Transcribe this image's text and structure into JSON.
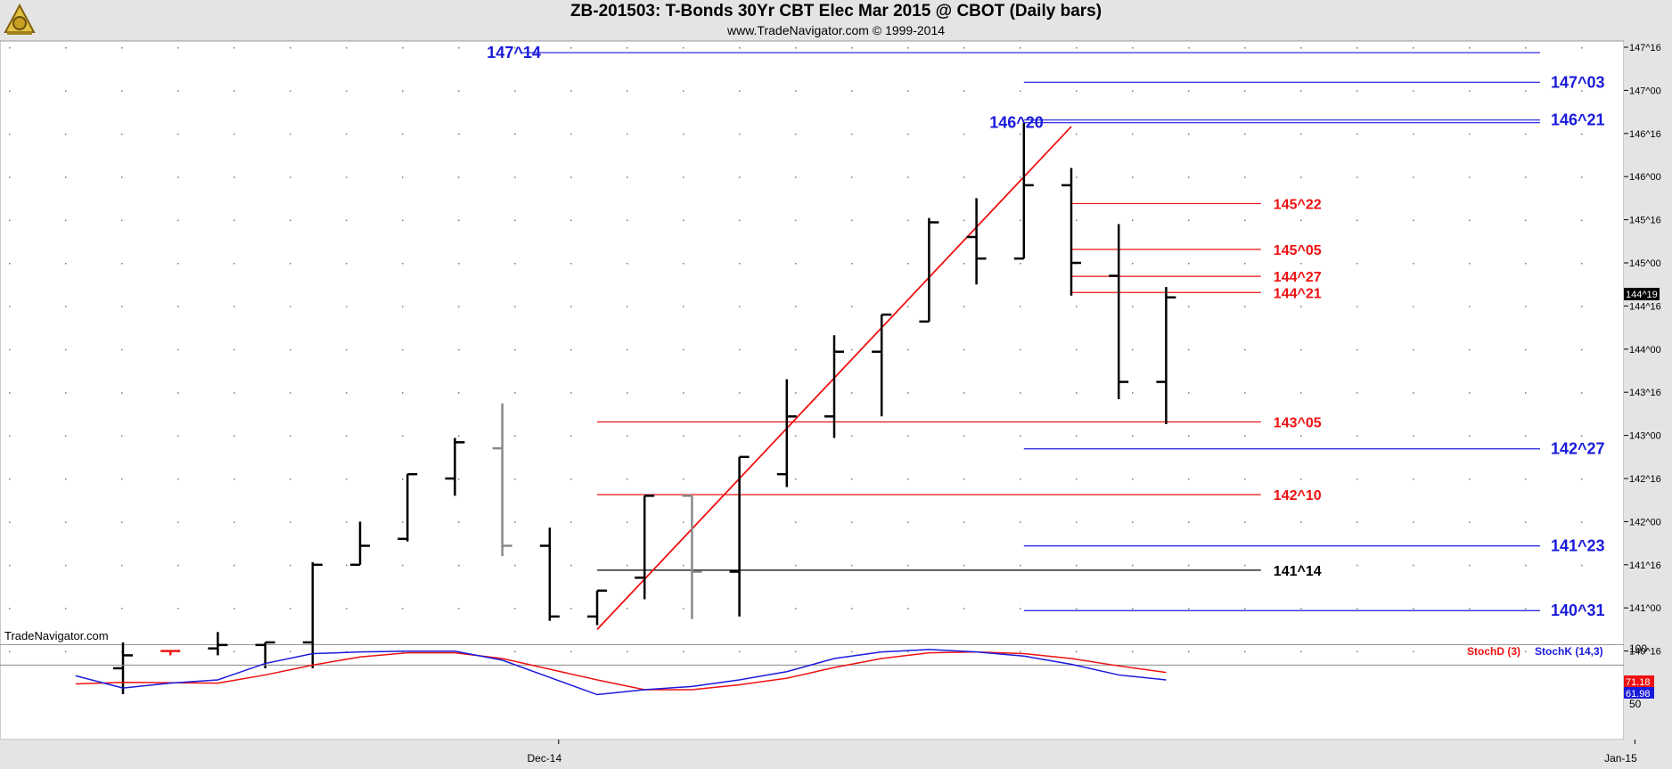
{
  "header": {
    "title": "ZB-201503:  T-Bonds 30Yr CBT Elec Mar 2015 @ CBOT  (Daily bars)",
    "subtitle": "www.TradeNavigator.com © 1999-2014",
    "logo_icon": "sextant-logo-icon"
  },
  "watermark": "TradeNavigator.com",
  "colors": {
    "background": "#ffffff",
    "frame": "#e4e4e4",
    "bar": "#000000",
    "highlight_bar": "#888888",
    "blue_level": "#1a1adb",
    "red_level": "#ee1111",
    "trendline": "#ee1111",
    "black_level": "#000000",
    "stochD": "#ee1111",
    "stochK": "#1a1adb"
  },
  "chart_data": [
    {
      "type": "ohlc",
      "name": "price",
      "ylim_ticks": [
        140.5,
        147.5
      ],
      "price_axis_ticks": [
        "147^16",
        "147^00",
        "146^16",
        "146^00",
        "145^16",
        "145^00",
        "144^16",
        "144^00",
        "143^16",
        "143^00",
        "142^16",
        "142^00",
        "141^16",
        "141^00",
        "140^16"
      ],
      "current_price_label": "144^19",
      "x_labels": [
        {
          "label": "Dec-14",
          "slot": 9
        },
        {
          "label": "Jan-15",
          "slot": 31.7
        }
      ],
      "bars": [
        {
          "slot": 0,
          "open": 140.3,
          "high": 140.6,
          "low": 140.0,
          "close": 140.45,
          "color": "black"
        },
        {
          "slot": 1,
          "open": 140.5,
          "high": 140.5,
          "low": 140.45,
          "close": 140.5,
          "color": "red"
        },
        {
          "slot": 2,
          "open": 140.53,
          "high": 140.72,
          "low": 140.45,
          "close": 140.57,
          "color": "black"
        },
        {
          "slot": 3,
          "open": 140.57,
          "high": 140.6,
          "low": 140.3,
          "close": 140.6,
          "color": "black"
        },
        {
          "slot": 4,
          "open": 140.6,
          "high": 141.53,
          "low": 140.3,
          "close": 141.5,
          "color": "black"
        },
        {
          "slot": 5,
          "open": 141.5,
          "high": 142.0,
          "low": 141.5,
          "close": 141.72,
          "color": "black"
        },
        {
          "slot": 6,
          "open": 141.8,
          "high": 142.55,
          "low": 141.77,
          "close": 142.55,
          "color": "black"
        },
        {
          "slot": 7,
          "open": 142.5,
          "high": 142.97,
          "low": 142.3,
          "close": 142.92,
          "color": "black"
        },
        {
          "slot": 8,
          "open": 142.85,
          "high": 143.37,
          "low": 141.6,
          "close": 141.72,
          "color": "gray"
        },
        {
          "slot": 9,
          "open": 141.72,
          "high": 141.93,
          "low": 140.85,
          "close": 140.9,
          "color": "black"
        },
        {
          "slot": 10,
          "open": 140.9,
          "high": 141.2,
          "low": 140.8,
          "close": 141.2,
          "color": "black"
        },
        {
          "slot": 11,
          "open": 141.35,
          "high": 142.3,
          "low": 141.1,
          "close": 142.3,
          "color": "black"
        },
        {
          "slot": 12,
          "open": 142.3,
          "high": 142.3,
          "low": 140.87,
          "close": 141.42,
          "color": "gray"
        },
        {
          "slot": 13,
          "open": 141.42,
          "high": 142.75,
          "low": 140.9,
          "close": 142.75,
          "color": "black"
        },
        {
          "slot": 14,
          "open": 142.55,
          "high": 143.65,
          "low": 142.4,
          "close": 143.22,
          "color": "black"
        },
        {
          "slot": 15,
          "open": 143.22,
          "high": 144.16,
          "low": 142.97,
          "close": 143.97,
          "color": "black"
        },
        {
          "slot": 16,
          "open": 143.97,
          "high": 144.4,
          "low": 143.22,
          "close": 144.4,
          "color": "black"
        },
        {
          "slot": 17,
          "open": 144.32,
          "high": 145.52,
          "low": 144.32,
          "close": 145.47,
          "color": "black"
        },
        {
          "slot": 18,
          "open": 145.3,
          "high": 145.75,
          "low": 144.75,
          "close": 145.05,
          "color": "black"
        },
        {
          "slot": 19,
          "open": 145.05,
          "high": 146.62,
          "low": 145.05,
          "close": 145.9,
          "color": "black"
        },
        {
          "slot": 20,
          "open": 145.9,
          "high": 146.1,
          "low": 144.62,
          "close": 145.0,
          "color": "black"
        },
        {
          "slot": 21,
          "open": 144.85,
          "high": 145.45,
          "low": 143.42,
          "close": 143.62,
          "color": "black"
        },
        {
          "slot": 22,
          "open": 143.62,
          "high": 144.72,
          "low": 143.13,
          "close": 144.6,
          "color": "black"
        }
      ],
      "levels": [
        {
          "label": "147^14",
          "value": 147.4375,
          "color": "blue",
          "from_slot": 8.4,
          "to_slot": 30.0,
          "label_side": "left"
        },
        {
          "label": "147^03",
          "value": 147.09375,
          "color": "blue",
          "from_slot": 19.0,
          "to_slot": 30.0,
          "label_side": "right"
        },
        {
          "label": "146^20",
          "value": 146.625,
          "color": "blue",
          "from_slot": 19.0,
          "to_slot": 30.0,
          "label_side": "left"
        },
        {
          "label": "146^21",
          "value": 146.65625,
          "color": "blue",
          "from_slot": 19.0,
          "to_slot": 30.0,
          "label_side": "right"
        },
        {
          "label": "145^22",
          "value": 145.6875,
          "color": "red",
          "from_slot": 20.0,
          "to_slot": 24.0,
          "label_side": "right"
        },
        {
          "label": "145^05",
          "value": 145.15625,
          "color": "red",
          "from_slot": 20.0,
          "to_slot": 24.0,
          "label_side": "right"
        },
        {
          "label": "144^27",
          "value": 144.84375,
          "color": "red",
          "from_slot": 20.0,
          "to_slot": 24.0,
          "label_side": "right"
        },
        {
          "label": "144^21",
          "value": 144.65625,
          "color": "red",
          "from_slot": 20.0,
          "to_slot": 24.0,
          "label_side": "right"
        },
        {
          "label": "143^05",
          "value": 143.15625,
          "color": "red",
          "from_slot": 10.0,
          "to_slot": 24.0,
          "label_side": "right"
        },
        {
          "label": "142^27",
          "value": 142.84375,
          "color": "blue",
          "from_slot": 19.0,
          "to_slot": 30.0,
          "label_side": "right"
        },
        {
          "label": "142^10",
          "value": 142.3125,
          "color": "red",
          "from_slot": 10.0,
          "to_slot": 24.0,
          "label_side": "right"
        },
        {
          "label": "141^23",
          "value": 141.71875,
          "color": "blue",
          "from_slot": 19.0,
          "to_slot": 30.0,
          "label_side": "right"
        },
        {
          "label": "141^14",
          "value": 141.4375,
          "color": "black",
          "from_slot": 10.0,
          "to_slot": 24.0,
          "label_side": "right"
        },
        {
          "label": "140^31",
          "value": 140.96875,
          "color": "blue",
          "from_slot": 19.0,
          "to_slot": 30.0,
          "label_side": "right"
        }
      ],
      "trendline": {
        "from": {
          "slot": 10,
          "value": 140.75
        },
        "to": {
          "slot": 20,
          "value": 146.58
        },
        "color": "red"
      }
    },
    {
      "type": "line",
      "name": "stochastic",
      "ylim": [
        0,
        100
      ],
      "y_ticks": [
        "100",
        "50"
      ],
      "legend": [
        "StochD (3)",
        "StochK (14,3)"
      ],
      "last_values": {
        "stochD": "71.18",
        "stochK": "61.98"
      },
      "series": [
        {
          "name": "StochD (3)",
          "color": "red",
          "points": [
            {
              "slot": -1,
              "v": 57
            },
            {
              "slot": 0,
              "v": 59
            },
            {
              "slot": 2,
              "v": 58
            },
            {
              "slot": 3,
              "v": 68
            },
            {
              "slot": 4,
              "v": 80
            },
            {
              "slot": 5,
              "v": 90
            },
            {
              "slot": 6,
              "v": 95
            },
            {
              "slot": 7,
              "v": 95
            },
            {
              "slot": 8,
              "v": 88
            },
            {
              "slot": 9,
              "v": 75
            },
            {
              "slot": 10,
              "v": 62
            },
            {
              "slot": 11,
              "v": 50
            },
            {
              "slot": 12,
              "v": 50
            },
            {
              "slot": 13,
              "v": 56
            },
            {
              "slot": 14,
              "v": 64
            },
            {
              "slot": 15,
              "v": 77
            },
            {
              "slot": 16,
              "v": 88
            },
            {
              "slot": 17,
              "v": 95
            },
            {
              "slot": 18,
              "v": 96
            },
            {
              "slot": 19,
              "v": 94
            },
            {
              "slot": 20,
              "v": 88
            },
            {
              "slot": 21,
              "v": 79
            },
            {
              "slot": 22,
              "v": 71
            }
          ]
        },
        {
          "name": "StochK (14,3)",
          "color": "blue",
          "points": [
            {
              "slot": -1,
              "v": 67
            },
            {
              "slot": 0,
              "v": 52
            },
            {
              "slot": 1,
              "v": 58
            },
            {
              "slot": 2,
              "v": 62
            },
            {
              "slot": 3,
              "v": 82
            },
            {
              "slot": 4,
              "v": 94
            },
            {
              "slot": 5,
              "v": 96
            },
            {
              "slot": 6,
              "v": 97
            },
            {
              "slot": 7,
              "v": 97
            },
            {
              "slot": 8,
              "v": 86
            },
            {
              "slot": 9,
              "v": 65
            },
            {
              "slot": 10,
              "v": 44
            },
            {
              "slot": 11,
              "v": 50
            },
            {
              "slot": 12,
              "v": 54
            },
            {
              "slot": 13,
              "v": 62
            },
            {
              "slot": 14,
              "v": 72
            },
            {
              "slot": 15,
              "v": 88
            },
            {
              "slot": 16,
              "v": 96
            },
            {
              "slot": 17,
              "v": 99
            },
            {
              "slot": 18,
              "v": 96
            },
            {
              "slot": 19,
              "v": 91
            },
            {
              "slot": 20,
              "v": 81
            },
            {
              "slot": 21,
              "v": 68
            },
            {
              "slot": 22,
              "v": 62
            }
          ]
        }
      ]
    }
  ]
}
